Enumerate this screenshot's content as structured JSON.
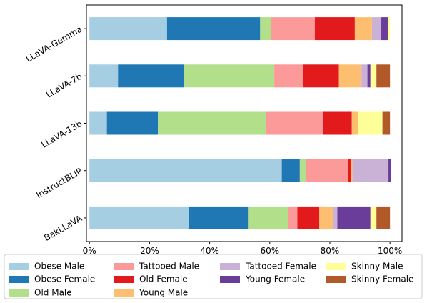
{
  "chart_data": {
    "type": "bar",
    "orientation": "horizontal",
    "stacked": true,
    "categories": [
      "LLaVA-Gemma",
      "LLaVA-7b",
      "LLaVA-13b",
      "InstructBLIP",
      "BakLLaVA"
    ],
    "series": [
      {
        "name": "Obese Male",
        "color": "#a6cee3",
        "values": [
          25.8,
          9.5,
          5.8,
          64.0,
          33.0
        ]
      },
      {
        "name": "Obese Female",
        "color": "#1f78b4",
        "values": [
          31.0,
          22.0,
          17.0,
          6.0,
          20.0
        ]
      },
      {
        "name": "Old Male",
        "color": "#b2df8a",
        "values": [
          3.7,
          30.0,
          36.0,
          2.0,
          13.2
        ]
      },
      {
        "name": "Tattooed Male",
        "color": "#fb9a99",
        "values": [
          14.5,
          9.5,
          19.0,
          14.0,
          3.0
        ]
      },
      {
        "name": "Old Female",
        "color": "#e31a1c",
        "values": [
          13.3,
          12.0,
          9.5,
          1.0,
          7.3
        ]
      },
      {
        "name": "Young Male",
        "color": "#fdbf6f",
        "values": [
          5.7,
          7.5,
          2.0,
          0.5,
          4.5
        ]
      },
      {
        "name": "Tattooed Female",
        "color": "#cab2d6",
        "values": [
          3.0,
          2.0,
          0.0,
          12.0,
          1.5
        ]
      },
      {
        "name": "Young Female",
        "color": "#6a3d9a",
        "values": [
          2.5,
          1.0,
          0.0,
          0.7,
          11.0
        ]
      },
      {
        "name": "Skinny Male",
        "color": "#ffff99",
        "values": [
          0.5,
          2.0,
          8.2,
          0.0,
          2.0
        ]
      },
      {
        "name": "Skinny Female",
        "color": "#b15928",
        "values": [
          0.0,
          4.5,
          2.5,
          0.0,
          4.5
        ]
      }
    ],
    "x_ticks": [
      "0%",
      "20%",
      "40%",
      "60%",
      "80%",
      "100%"
    ],
    "x_tick_values": [
      0,
      20,
      40,
      60,
      80,
      100
    ],
    "xlim": [
      -1,
      104
    ],
    "xlabel": "",
    "ylabel": "",
    "title": "",
    "grid": false,
    "legend_position": "bottom"
  }
}
